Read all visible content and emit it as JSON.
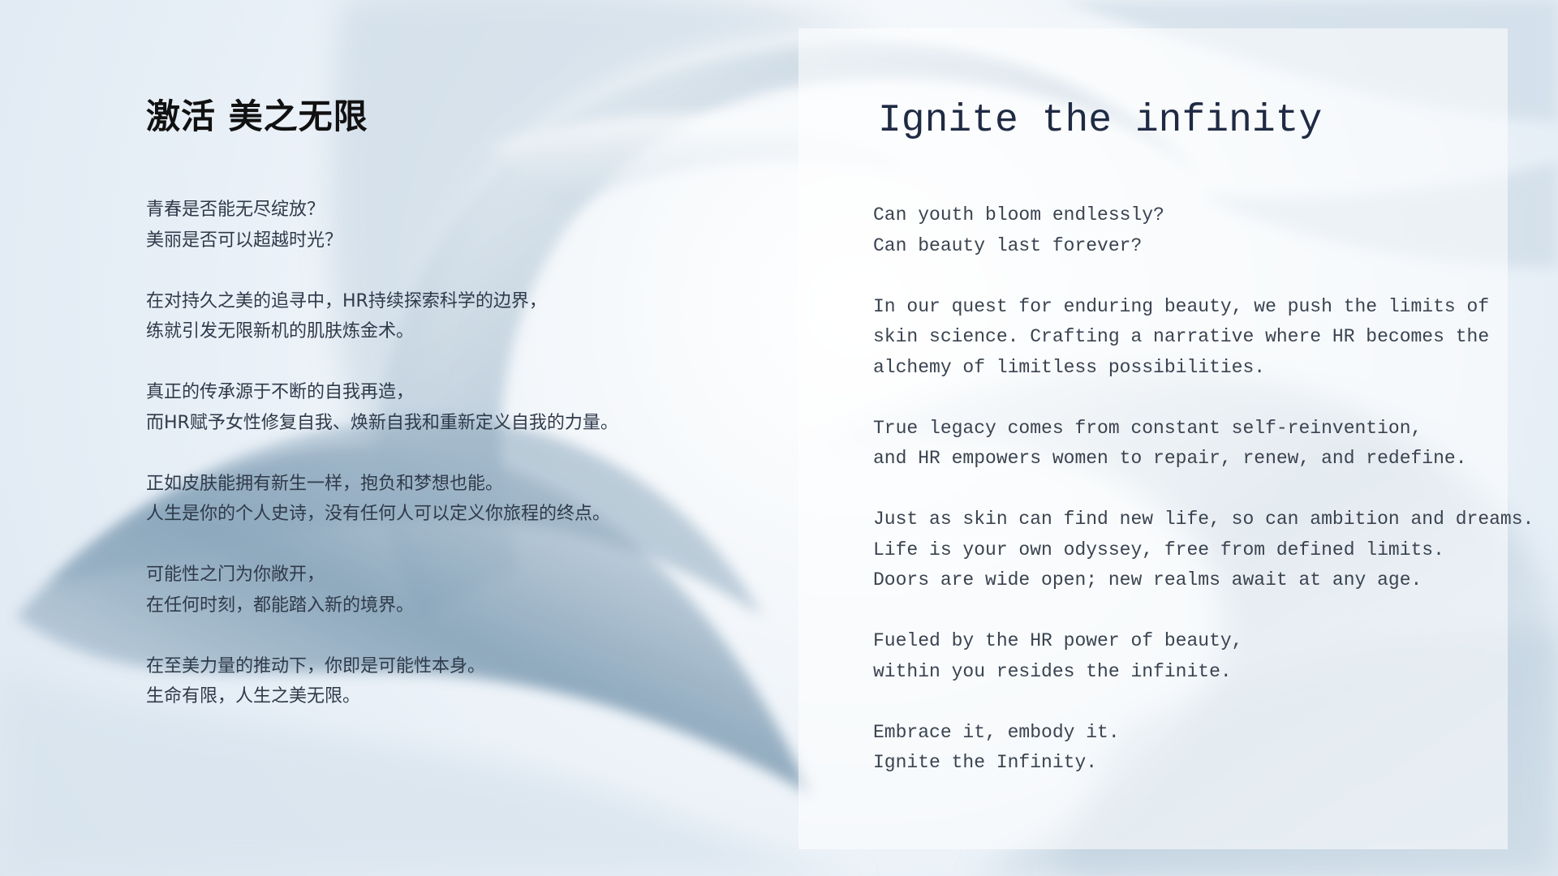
{
  "colors": {
    "title_zh": "#111111",
    "title_en": "#1f2a44",
    "body_text": "#2f3a4a",
    "panel": "#ffffff",
    "ribbon": "#9fb6c9"
  },
  "left": {
    "title": "激活 美之无限",
    "paragraphs": [
      [
        "青春是否能无尽绽放？",
        "美丽是否可以超越时光？"
      ],
      [
        "在对持久之美的追寻中，HR持续探索科学的边界，",
        "练就引发无限新机的肌肤炼金术。"
      ],
      [
        "真正的传承源于不断的自我再造，",
        "而HR赋予女性修复自我、焕新自我和重新定义自我的力量。"
      ],
      [
        "正如皮肤能拥有新生一样，抱负和梦想也能。",
        "人生是你的个人史诗，没有任何人可以定义你旅程的终点。"
      ],
      [
        "可能性之门为你敞开，",
        "在任何时刻，都能踏入新的境界。"
      ],
      [
        "在至美力量的推动下，你即是可能性本身。",
        "生命有限，人生之美无限。"
      ]
    ]
  },
  "right": {
    "title": "Ignite the infinity",
    "paragraphs": [
      [
        "Can youth bloom endlessly?",
        "Can beauty last forever?"
      ],
      [
        "In our quest for enduring beauty, we push the limits of",
        "skin science. Crafting a narrative where HR becomes the",
        "alchemy of limitless possibilities."
      ],
      [
        "True legacy comes from constant self-reinvention,",
        "and HR empowers women to repair, renew, and redefine."
      ],
      [
        "Just as skin can find new life, so can ambition and dreams.",
        "Life is your own odyssey, free from defined limits.",
        "Doors are wide open; new realms await at any age."
      ],
      [
        "Fueled by the HR power of beauty,",
        "within you resides the infinite."
      ],
      [
        "Embrace it, embody it.",
        "Ignite the Infinity."
      ]
    ]
  }
}
